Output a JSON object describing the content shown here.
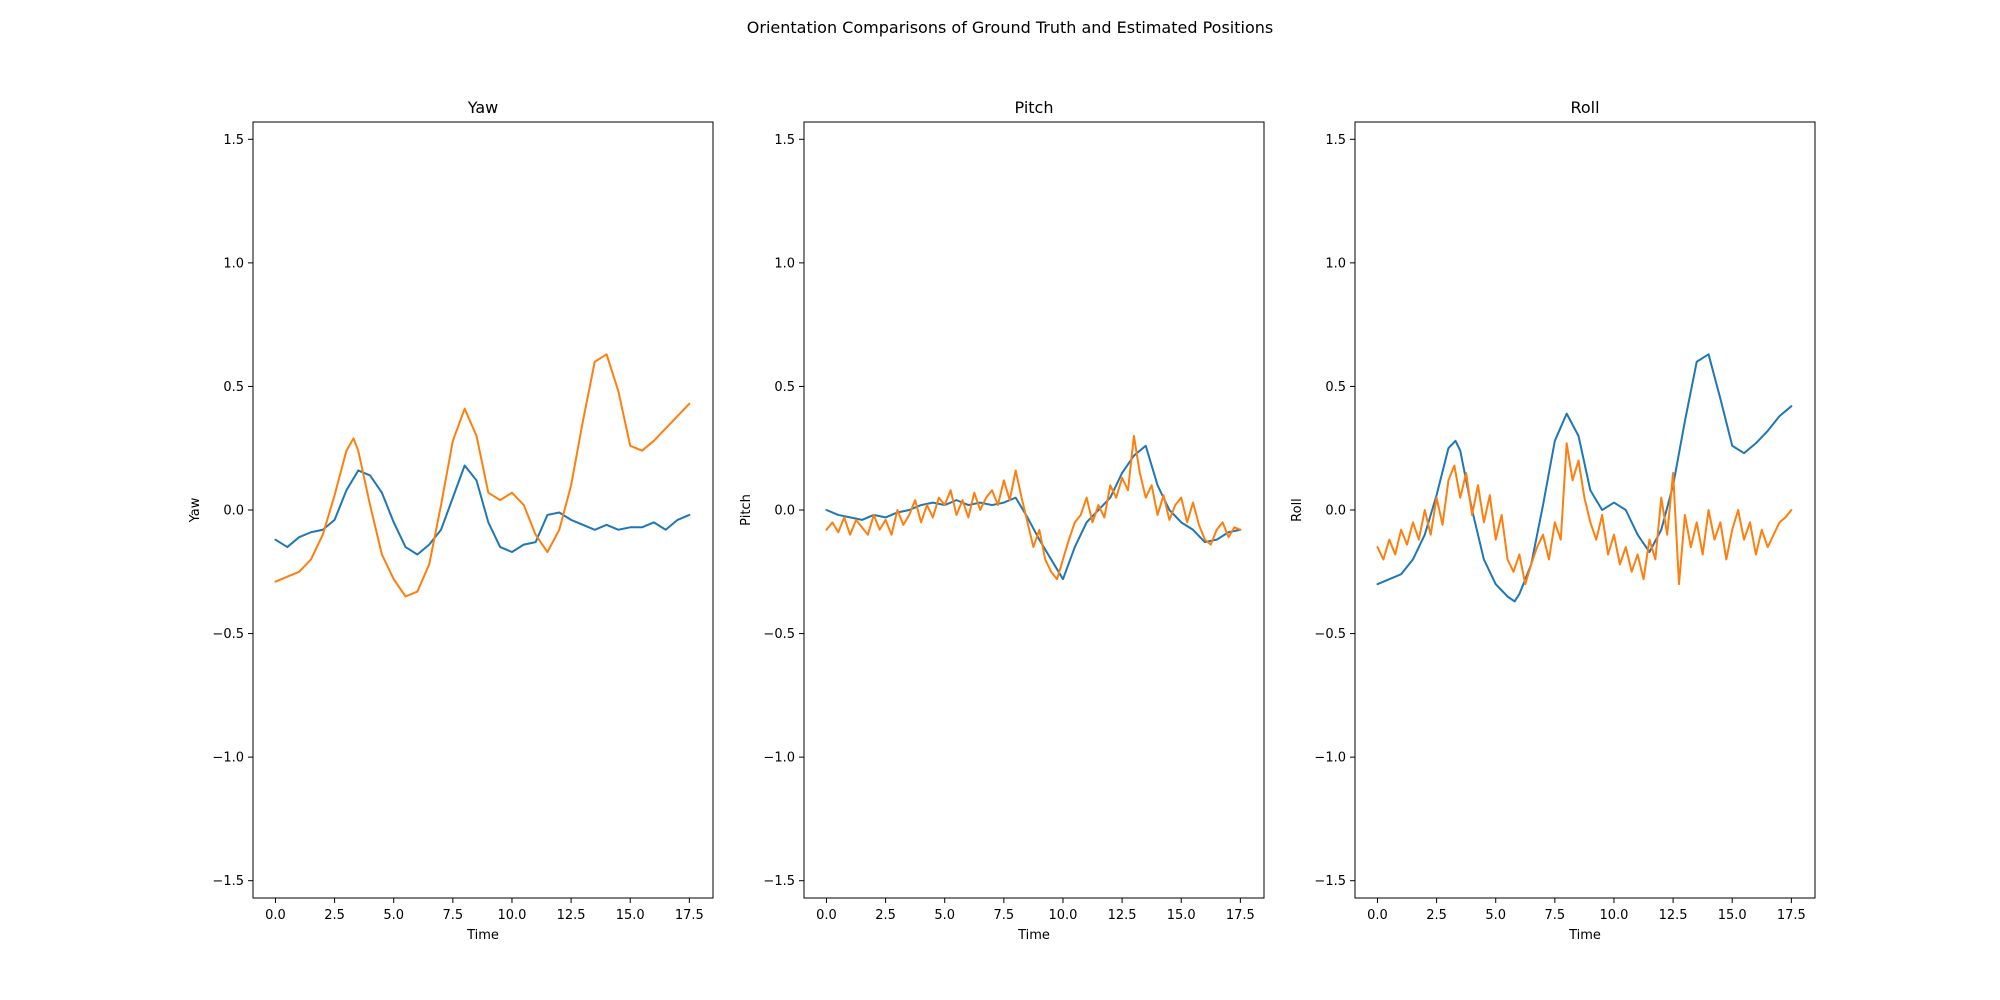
{
  "figure_title": "Orientation Comparisons of Ground Truth and Estimated Positions",
  "colors": {
    "series1": "#1f77b4",
    "series2": "#ff7f0e"
  },
  "chart_data": [
    {
      "type": "line",
      "title": "Yaw",
      "xlabel": "Time",
      "ylabel": "Yaw",
      "xlim": [
        -0.95,
        18.5
      ],
      "ylim": [
        -1.57,
        1.57
      ],
      "x_ticks": [
        0.0,
        2.5,
        5.0,
        7.5,
        10.0,
        12.5,
        15.0,
        17.5
      ],
      "x_tick_labels": [
        "0.0",
        "2.5",
        "5.0",
        "7.5",
        "10.0",
        "12.5",
        "15.0",
        "17.5"
      ],
      "y_ticks": [
        -1.5,
        -1.0,
        -0.5,
        0.0,
        0.5,
        1.0,
        1.5
      ],
      "y_tick_labels": [
        "−1.5",
        "−1.0",
        "−0.5",
        "0.0",
        "0.5",
        "1.0",
        "1.5"
      ],
      "grid": false,
      "series": [
        {
          "color": "#1f77b4",
          "x": [
            0.0,
            0.5,
            1.0,
            1.5,
            2.0,
            2.5,
            3.0,
            3.5,
            4.0,
            4.5,
            5.0,
            5.5,
            6.0,
            6.5,
            7.0,
            7.5,
            8.0,
            8.5,
            9.0,
            9.5,
            10.0,
            10.5,
            11.0,
            11.5,
            12.0,
            12.5,
            13.0,
            13.5,
            14.0,
            14.5,
            15.0,
            15.5,
            16.0,
            16.5,
            17.0,
            17.5
          ],
          "y": [
            -0.12,
            -0.15,
            -0.11,
            -0.09,
            -0.08,
            -0.04,
            0.08,
            0.16,
            0.14,
            0.07,
            -0.05,
            -0.15,
            -0.18,
            -0.14,
            -0.08,
            0.05,
            0.18,
            0.12,
            -0.05,
            -0.15,
            -0.17,
            -0.14,
            -0.13,
            -0.02,
            -0.01,
            -0.04,
            -0.06,
            -0.08,
            -0.06,
            -0.08,
            -0.07,
            -0.07,
            -0.05,
            -0.08,
            -0.04,
            -0.02
          ]
        },
        {
          "color": "#ff7f0e",
          "x": [
            0.0,
            0.5,
            1.0,
            1.5,
            2.0,
            2.5,
            3.0,
            3.3,
            3.5,
            4.0,
            4.5,
            5.0,
            5.5,
            6.0,
            6.5,
            7.0,
            7.5,
            8.0,
            8.5,
            9.0,
            9.5,
            10.0,
            10.5,
            11.0,
            11.5,
            12.0,
            12.5,
            13.0,
            13.5,
            14.0,
            14.5,
            15.0,
            15.5,
            16.0,
            16.5,
            17.0,
            17.5
          ],
          "y": [
            -0.29,
            -0.27,
            -0.25,
            -0.2,
            -0.1,
            0.06,
            0.24,
            0.29,
            0.24,
            0.02,
            -0.18,
            -0.28,
            -0.35,
            -0.33,
            -0.22,
            0.02,
            0.28,
            0.41,
            0.3,
            0.07,
            0.04,
            0.07,
            0.02,
            -0.1,
            -0.17,
            -0.08,
            0.1,
            0.36,
            0.6,
            0.63,
            0.48,
            0.26,
            0.24,
            0.28,
            0.33,
            0.38,
            0.43
          ]
        }
      ]
    },
    {
      "type": "line",
      "title": "Pitch",
      "xlabel": "Time",
      "ylabel": "Pitch",
      "xlim": [
        -0.95,
        18.5
      ],
      "ylim": [
        -1.57,
        1.57
      ],
      "x_ticks": [
        0.0,
        2.5,
        5.0,
        7.5,
        10.0,
        12.5,
        15.0,
        17.5
      ],
      "x_tick_labels": [
        "0.0",
        "2.5",
        "5.0",
        "7.5",
        "10.0",
        "12.5",
        "15.0",
        "17.5"
      ],
      "y_ticks": [
        -1.5,
        -1.0,
        -0.5,
        0.0,
        0.5,
        1.0,
        1.5
      ],
      "y_tick_labels": [
        "−1.5",
        "−1.0",
        "−0.5",
        "0.0",
        "0.5",
        "1.0",
        "1.5"
      ],
      "grid": false,
      "series": [
        {
          "color": "#1f77b4",
          "x": [
            0.0,
            0.5,
            1.0,
            1.5,
            2.0,
            2.5,
            3.0,
            3.5,
            4.0,
            4.5,
            5.0,
            5.5,
            6.0,
            6.5,
            7.0,
            7.5,
            8.0,
            8.5,
            9.0,
            9.5,
            10.0,
            10.5,
            11.0,
            11.5,
            12.0,
            12.5,
            13.0,
            13.5,
            14.0,
            14.5,
            15.0,
            15.5,
            16.0,
            16.5,
            17.0,
            17.5
          ],
          "y": [
            0.0,
            -0.02,
            -0.03,
            -0.04,
            -0.02,
            -0.03,
            -0.01,
            0.0,
            0.02,
            0.03,
            0.02,
            0.04,
            0.02,
            0.03,
            0.02,
            0.03,
            0.05,
            -0.03,
            -0.12,
            -0.2,
            -0.28,
            -0.15,
            -0.05,
            0.0,
            0.05,
            0.15,
            0.22,
            0.26,
            0.1,
            0.0,
            -0.05,
            -0.08,
            -0.13,
            -0.12,
            -0.09,
            -0.08
          ]
        },
        {
          "color": "#ff7f0e",
          "x": [
            0.0,
            0.25,
            0.5,
            0.75,
            1.0,
            1.25,
            1.5,
            1.75,
            2.0,
            2.25,
            2.5,
            2.75,
            3.0,
            3.25,
            3.5,
            3.75,
            4.0,
            4.25,
            4.5,
            4.75,
            5.0,
            5.25,
            5.5,
            5.75,
            6.0,
            6.25,
            6.5,
            6.75,
            7.0,
            7.25,
            7.5,
            7.75,
            8.0,
            8.25,
            8.5,
            8.75,
            9.0,
            9.25,
            9.5,
            9.75,
            10.0,
            10.25,
            10.5,
            10.75,
            11.0,
            11.25,
            11.5,
            11.75,
            12.0,
            12.25,
            12.5,
            12.75,
            13.0,
            13.25,
            13.5,
            13.75,
            14.0,
            14.25,
            14.5,
            14.75,
            15.0,
            15.25,
            15.5,
            15.75,
            16.0,
            16.25,
            16.5,
            16.75,
            17.0,
            17.25,
            17.5
          ],
          "y": [
            -0.08,
            -0.05,
            -0.09,
            -0.03,
            -0.1,
            -0.04,
            -0.07,
            -0.1,
            -0.02,
            -0.08,
            -0.04,
            -0.1,
            0.0,
            -0.06,
            -0.02,
            0.04,
            -0.05,
            0.02,
            -0.03,
            0.05,
            0.02,
            0.08,
            -0.02,
            0.04,
            -0.03,
            0.07,
            0.0,
            0.05,
            0.08,
            0.02,
            0.12,
            0.04,
            0.16,
            0.05,
            -0.05,
            -0.15,
            -0.08,
            -0.2,
            -0.25,
            -0.28,
            -0.2,
            -0.12,
            -0.05,
            -0.02,
            0.05,
            -0.05,
            0.02,
            -0.03,
            0.1,
            0.05,
            0.13,
            0.08,
            0.3,
            0.15,
            0.05,
            0.1,
            -0.02,
            0.06,
            -0.04,
            0.02,
            0.05,
            -0.05,
            0.03,
            -0.06,
            -0.12,
            -0.14,
            -0.08,
            -0.05,
            -0.11,
            -0.07,
            -0.08
          ]
        }
      ]
    },
    {
      "type": "line",
      "title": "Roll",
      "xlabel": "Time",
      "ylabel": "Roll",
      "xlim": [
        -0.95,
        18.5
      ],
      "ylim": [
        -1.57,
        1.57
      ],
      "x_ticks": [
        0.0,
        2.5,
        5.0,
        7.5,
        10.0,
        12.5,
        15.0,
        17.5
      ],
      "x_tick_labels": [
        "0.0",
        "2.5",
        "5.0",
        "7.5",
        "10.0",
        "12.5",
        "15.0",
        "17.5"
      ],
      "y_ticks": [
        -1.5,
        -1.0,
        -0.5,
        0.0,
        0.5,
        1.0,
        1.5
      ],
      "y_tick_labels": [
        "−1.5",
        "−1.0",
        "−0.5",
        "0.0",
        "0.5",
        "1.0",
        "1.5"
      ],
      "grid": false,
      "series": [
        {
          "color": "#1f77b4",
          "x": [
            0.0,
            0.5,
            1.0,
            1.5,
            2.0,
            2.5,
            3.0,
            3.3,
            3.5,
            4.0,
            4.5,
            5.0,
            5.5,
            5.8,
            6.0,
            6.5,
            7.0,
            7.5,
            8.0,
            8.5,
            9.0,
            9.5,
            10.0,
            10.5,
            11.0,
            11.5,
            12.0,
            12.5,
            13.0,
            13.5,
            14.0,
            14.5,
            15.0,
            15.5,
            16.0,
            16.5,
            17.0,
            17.5
          ],
          "y": [
            -0.3,
            -0.28,
            -0.26,
            -0.2,
            -0.1,
            0.06,
            0.25,
            0.28,
            0.24,
            0.0,
            -0.2,
            -0.3,
            -0.35,
            -0.37,
            -0.34,
            -0.22,
            0.02,
            0.28,
            0.39,
            0.3,
            0.08,
            0.0,
            0.03,
            0.0,
            -0.1,
            -0.17,
            -0.08,
            0.1,
            0.36,
            0.6,
            0.63,
            0.45,
            0.26,
            0.23,
            0.27,
            0.32,
            0.38,
            0.42
          ]
        },
        {
          "color": "#ff7f0e",
          "x": [
            0.0,
            0.25,
            0.5,
            0.75,
            1.0,
            1.25,
            1.5,
            1.75,
            2.0,
            2.25,
            2.5,
            2.75,
            3.0,
            3.25,
            3.5,
            3.75,
            4.0,
            4.25,
            4.5,
            4.75,
            5.0,
            5.25,
            5.5,
            5.75,
            6.0,
            6.25,
            6.5,
            6.75,
            7.0,
            7.25,
            7.5,
            7.75,
            8.0,
            8.25,
            8.5,
            8.75,
            9.0,
            9.25,
            9.5,
            9.75,
            10.0,
            10.25,
            10.5,
            10.75,
            11.0,
            11.25,
            11.5,
            11.75,
            12.0,
            12.25,
            12.5,
            12.75,
            13.0,
            13.25,
            13.5,
            13.75,
            14.0,
            14.25,
            14.5,
            14.75,
            15.0,
            15.25,
            15.5,
            15.75,
            16.0,
            16.25,
            16.5,
            16.75,
            17.0,
            17.25,
            17.5
          ],
          "y": [
            -0.15,
            -0.2,
            -0.12,
            -0.18,
            -0.08,
            -0.14,
            -0.05,
            -0.12,
            0.0,
            -0.1,
            0.05,
            -0.06,
            0.12,
            0.18,
            0.05,
            0.15,
            -0.02,
            0.1,
            -0.05,
            0.06,
            -0.12,
            -0.02,
            -0.2,
            -0.25,
            -0.18,
            -0.3,
            -0.22,
            -0.15,
            -0.1,
            -0.2,
            -0.05,
            -0.12,
            0.27,
            0.12,
            0.2,
            0.05,
            -0.05,
            -0.12,
            -0.02,
            -0.18,
            -0.1,
            -0.22,
            -0.15,
            -0.25,
            -0.18,
            -0.28,
            -0.12,
            -0.2,
            0.05,
            -0.1,
            0.15,
            -0.3,
            -0.02,
            -0.15,
            -0.05,
            -0.18,
            0.0,
            -0.12,
            -0.05,
            -0.2,
            -0.08,
            0.0,
            -0.12,
            -0.05,
            -0.18,
            -0.08,
            -0.15,
            -0.1,
            -0.05,
            -0.03,
            0.0
          ]
        }
      ]
    }
  ]
}
